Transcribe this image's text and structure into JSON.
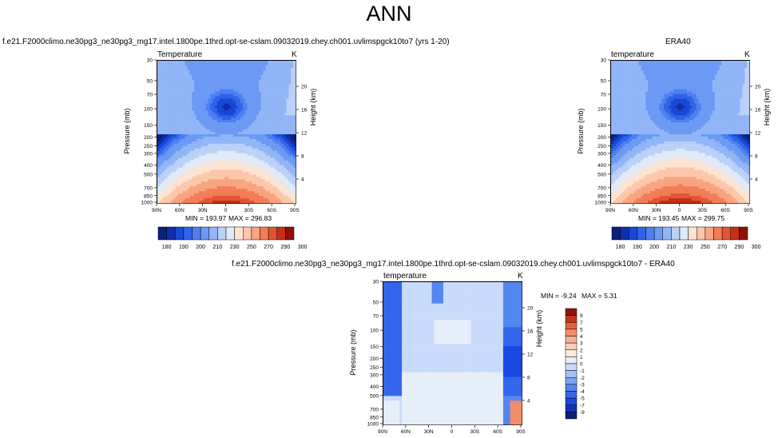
{
  "title": "ANN",
  "colors": {
    "temp_scale": [
      "#0a1e7a",
      "#0f2fa8",
      "#1749d6",
      "#2f63ea",
      "#4d7ff0",
      "#6c99f3",
      "#91b5f6",
      "#bad1f8",
      "#e1eaf8",
      "#fde3d2",
      "#fcc7ab",
      "#f9a480",
      "#f27d57",
      "#e25533",
      "#c52e18",
      "#8f0f0b"
    ],
    "diff_scale": [
      "#0a1e7a",
      "#1230b8",
      "#1c48e0",
      "#3466ec",
      "#5486f1",
      "#7aa5f4",
      "#a3c2f7",
      "#c9dbfa",
      "#e6eefa",
      "#fde8dc",
      "#fdcfb6",
      "#f9b08f",
      "#f28c69",
      "#e5613f",
      "#c8341c",
      "#951209"
    ]
  },
  "chart_data": [
    {
      "type": "heatmap",
      "panel": "model",
      "title": "f.e21.F2000climo.ne30pg3_ne30pg3_mg17.intel.1800pe.1thrd.opt-se-cslam.09032019.chey.ch001.uvlimspgck10to7 (yrs 1-20)",
      "label": "Temperature",
      "units": "K",
      "xlabel": "",
      "ylabel": "Pressure (mb)",
      "ylabel_right": "Height (km)",
      "x_ticks": [
        "90N",
        "60N",
        "30N",
        "0",
        "30S",
        "60S",
        "90S"
      ],
      "y_ticks": [
        "30",
        "50",
        "70",
        "100",
        "150",
        "200",
        "250",
        "300",
        "400",
        "500",
        "700",
        "850",
        "1000"
      ],
      "y_ticks_right": [
        "20",
        "16",
        "12",
        "8",
        "4"
      ],
      "min_label": "MIN = 193.97",
      "max_label": "MAX = 296.83",
      "min": 193.97,
      "max": 296.83,
      "colorbar_labels": [
        "180",
        "190",
        "200",
        "210",
        "230",
        "250",
        "270",
        "290",
        "300"
      ]
    },
    {
      "type": "heatmap",
      "panel": "obs",
      "title": "ERA40",
      "label": "temperature",
      "units": "K",
      "ylabel": "Pressure (mb)",
      "ylabel_right": "Height (km)",
      "x_ticks": [
        "90N",
        "60N",
        "30N",
        "0",
        "30S",
        "60S",
        "90S"
      ],
      "y_ticks": [
        "30",
        "50",
        "70",
        "100",
        "150",
        "200",
        "250",
        "300",
        "400",
        "500",
        "700",
        "850",
        "1000"
      ],
      "y_ticks_right": [
        "20",
        "16",
        "12",
        "8",
        "4"
      ],
      "min_label": "MIN = 193.45",
      "max_label": "MAX = 299.75",
      "min": 193.45,
      "max": 299.75,
      "colorbar_labels": [
        "180",
        "190",
        "200",
        "210",
        "230",
        "250",
        "270",
        "290",
        "300"
      ]
    },
    {
      "type": "heatmap",
      "panel": "difference",
      "title": "f.e21.F2000climo.ne30pg3_ne30pg3_mg17.intel.1800pe.1thrd.opt-se-cslam.09032019.chey.ch001.uvlimspgck10to7 - ERA40",
      "label": "temperature",
      "units": "K",
      "ylabel": "Pressure (mb)",
      "ylabel_right": "Height (km)",
      "x_ticks": [
        "90N",
        "60N",
        "30N",
        "0",
        "30S",
        "60S",
        "90S"
      ],
      "y_ticks": [
        "30",
        "50",
        "70",
        "100",
        "150",
        "200",
        "250",
        "300",
        "400",
        "500",
        "700",
        "850",
        "1000"
      ],
      "y_ticks_right": [
        "20",
        "16",
        "12",
        "8",
        "4"
      ],
      "min_label": "MIN = -9.24",
      "max_label": "MAX =   5.31",
      "min": -9.24,
      "max": 5.31,
      "colorbar_labels": [
        "9",
        "7",
        "5",
        "4",
        "3",
        "2",
        "1",
        "0",
        "-1",
        "-2",
        "-3",
        "-4",
        "-5",
        "-7",
        "-9"
      ]
    }
  ]
}
